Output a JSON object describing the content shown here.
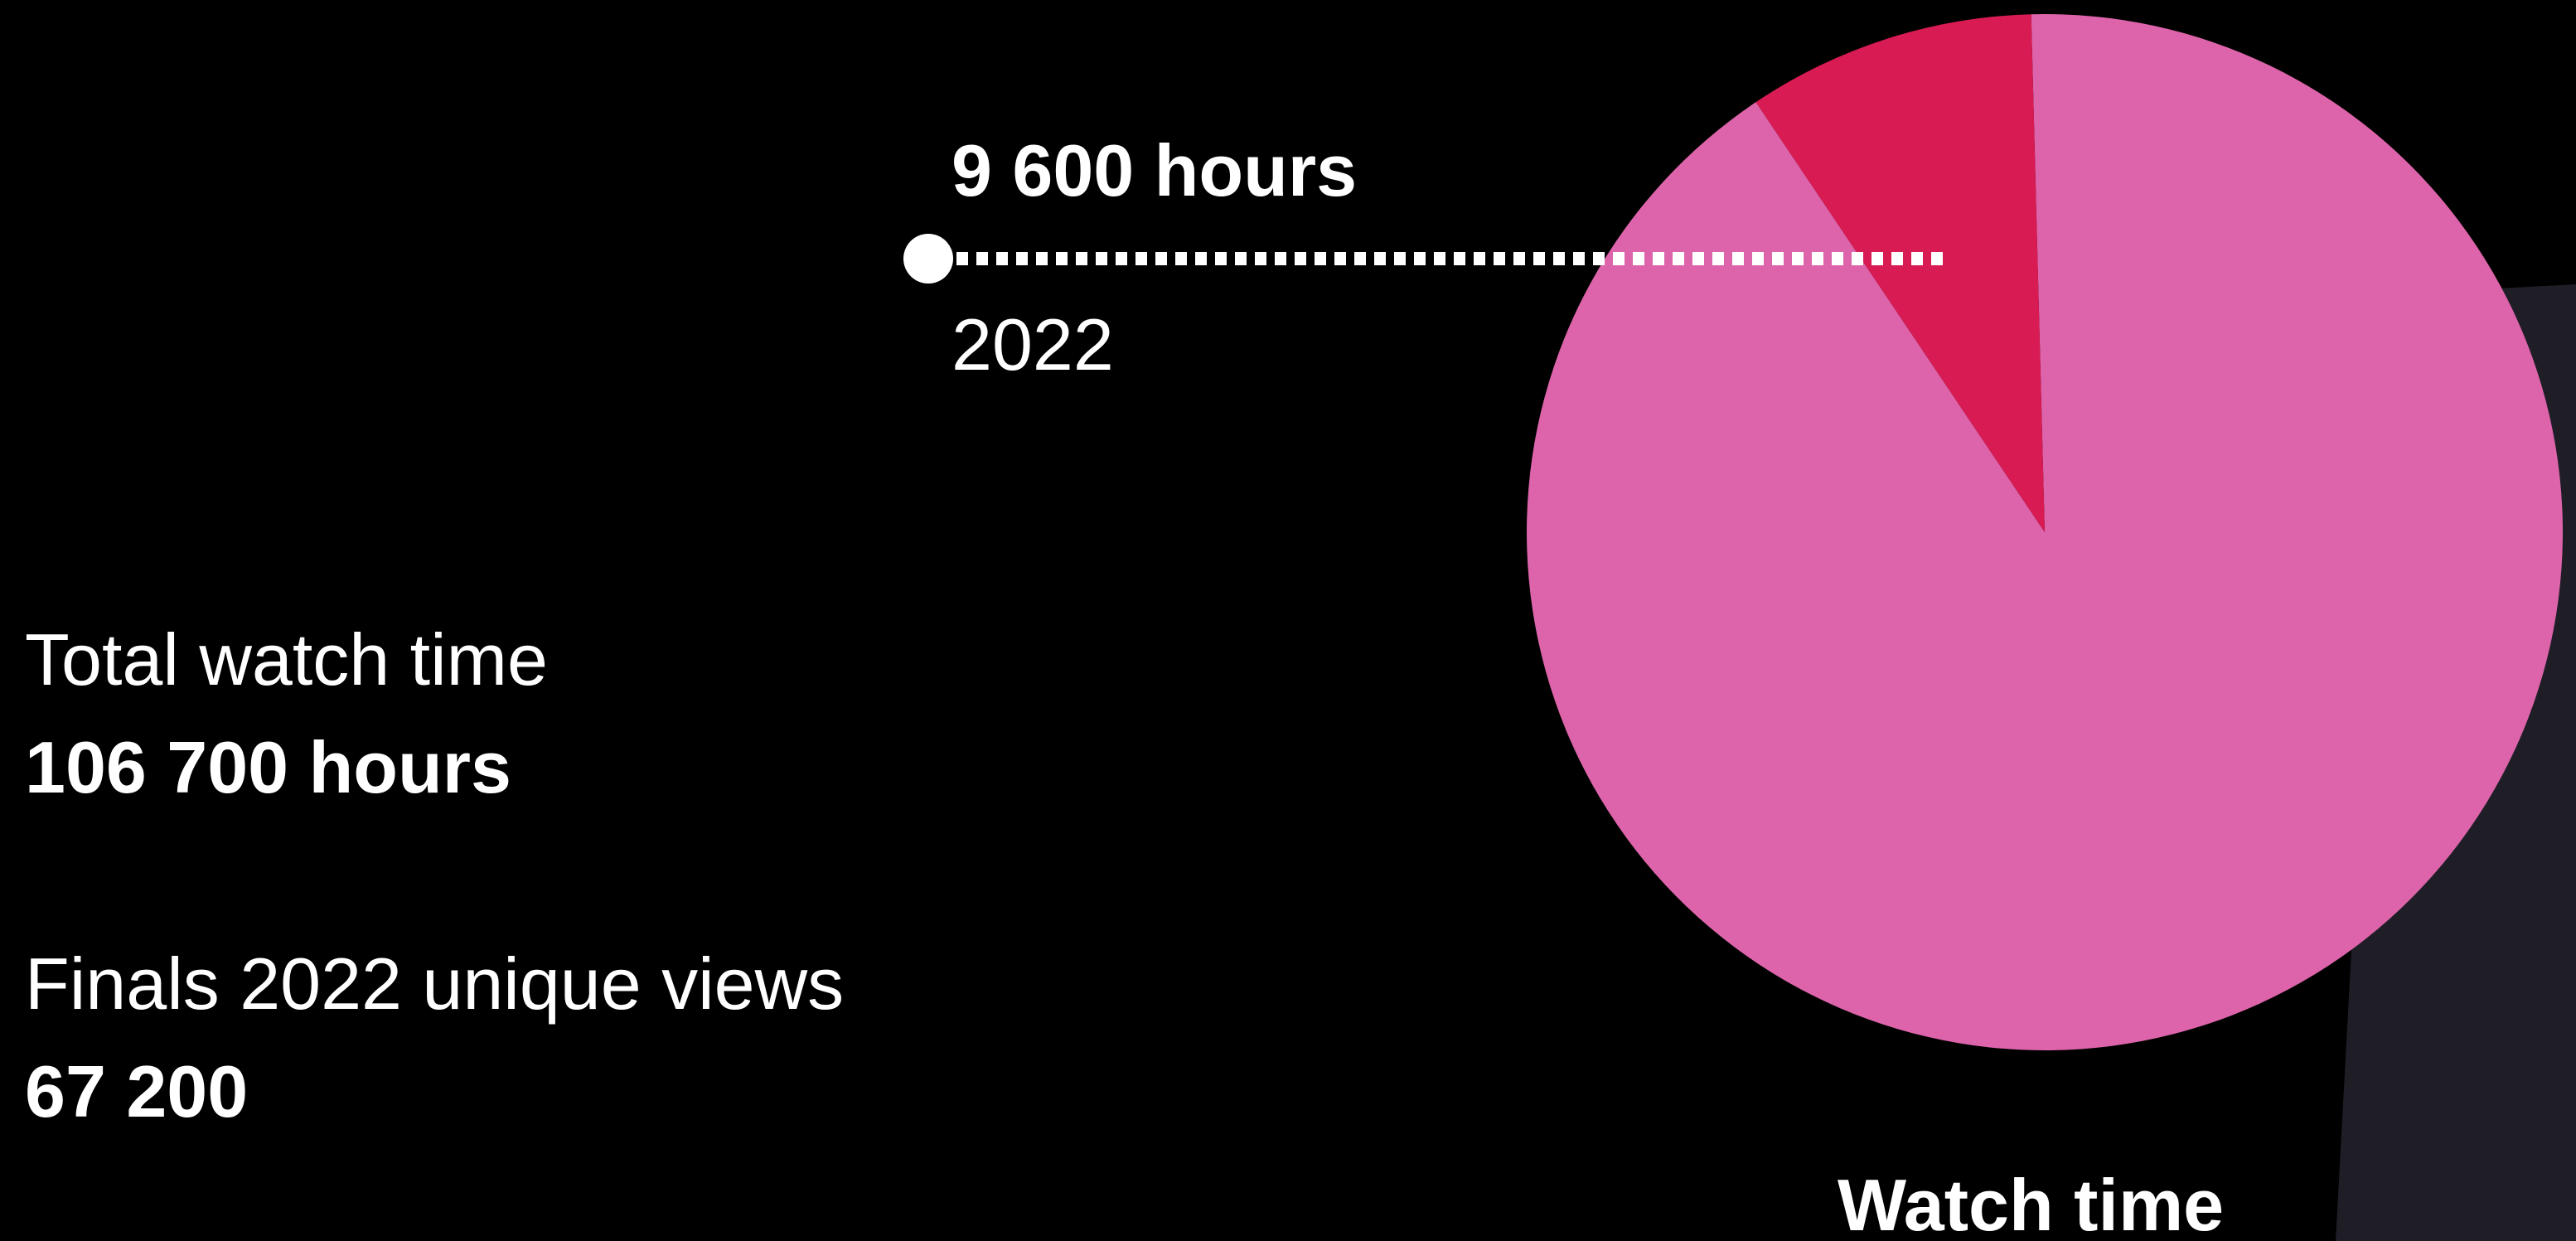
{
  "stats": {
    "total_label": "Total watch time",
    "total_value": "106 700 hours",
    "finals_label": "Finals 2022 unique views",
    "finals_value": "67 200"
  },
  "callout": {
    "value": "9 600 hours",
    "year": "2022"
  },
  "colors": {
    "background": "#000000",
    "panel": "#1f1e27",
    "pie_main": "#dd64aa",
    "pie_highlight": "#d81b52",
    "text": "#ffffff"
  },
  "chart_data": {
    "type": "pie",
    "title": "Watch time",
    "slices": [
      {
        "label": "2022",
        "value": 9600,
        "color": "#d81b52"
      },
      {
        "label": "",
        "value": 97100,
        "color": "#dd64aa"
      }
    ],
    "annotations": [
      {
        "text": "9 600 hours",
        "slice": "2022"
      },
      {
        "text": "2022",
        "slice": "2022"
      }
    ]
  }
}
